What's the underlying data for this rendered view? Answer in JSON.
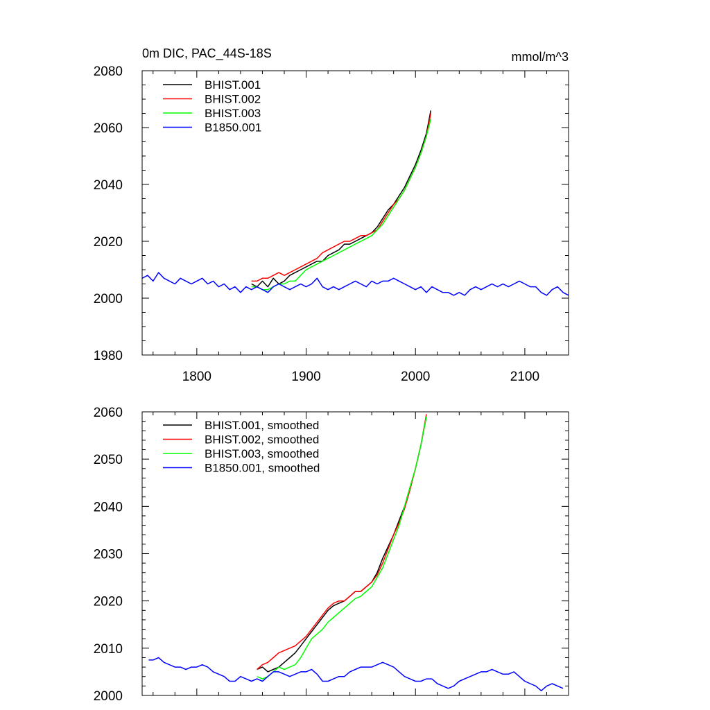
{
  "figure": {
    "title_left": "0m DIC, PAC_44S-18S",
    "title_right": "mmol/m^3"
  },
  "chart_data": [
    {
      "type": "line",
      "title": "0m DIC, PAC_44S-18S",
      "units": "mmol/m^3",
      "xlabel": "",
      "ylabel": "",
      "xlim": [
        1750,
        2140
      ],
      "ylim": [
        1980,
        2080
      ],
      "x_ticks": [
        1800,
        1900,
        2000,
        2100
      ],
      "y_ticks": [
        1980,
        2000,
        2020,
        2040,
        2060,
        2080
      ],
      "legend_position": "top-left",
      "grid": false,
      "series": [
        {
          "name": "BHIST.001",
          "color": "#000000",
          "x": [
            1850,
            1855,
            1860,
            1865,
            1870,
            1875,
            1880,
            1885,
            1890,
            1895,
            1900,
            1905,
            1910,
            1915,
            1920,
            1925,
            1930,
            1935,
            1940,
            1945,
            1950,
            1955,
            1960,
            1965,
            1970,
            1975,
            1980,
            1985,
            1990,
            1995,
            2000,
            2005,
            2010,
            2014
          ],
          "y": [
            2005,
            2004,
            2006,
            2004,
            2007,
            2005,
            2006,
            2008,
            2009,
            2010,
            2011,
            2012,
            2013,
            2013,
            2015,
            2016,
            2017,
            2019,
            2019,
            2020,
            2021,
            2022,
            2023,
            2025,
            2028,
            2031,
            2033,
            2036,
            2039,
            2043,
            2047,
            2052,
            2058,
            2066
          ]
        },
        {
          "name": "BHIST.002",
          "color": "#ff0000",
          "x": [
            1850,
            1855,
            1860,
            1865,
            1870,
            1875,
            1880,
            1885,
            1890,
            1895,
            1900,
            1905,
            1910,
            1915,
            1920,
            1925,
            1930,
            1935,
            1940,
            1945,
            1950,
            1955,
            1960,
            1965,
            1970,
            1975,
            1980,
            1985,
            1990,
            1995,
            2000,
            2005,
            2010,
            2014
          ],
          "y": [
            2006,
            2006,
            2007,
            2007,
            2008,
            2009,
            2008,
            2009,
            2010,
            2011,
            2012,
            2013,
            2014,
            2016,
            2017,
            2018,
            2019,
            2020,
            2020,
            2021,
            2022,
            2022,
            2023,
            2024,
            2027,
            2030,
            2033,
            2035,
            2038,
            2042,
            2046,
            2051,
            2057,
            2065
          ]
        },
        {
          "name": "BHIST.003",
          "color": "#00ff00",
          "x": [
            1850,
            1855,
            1860,
            1865,
            1870,
            1875,
            1880,
            1885,
            1890,
            1895,
            1900,
            1905,
            1910,
            1915,
            1920,
            1925,
            1930,
            1935,
            1940,
            1945,
            1950,
            1955,
            1960,
            1965,
            1970,
            1975,
            1980,
            1985,
            1990,
            1995,
            2000,
            2005,
            2010,
            2014
          ],
          "y": [
            2004,
            2004,
            2003,
            2003,
            2004,
            2005,
            2005,
            2006,
            2006,
            2008,
            2010,
            2011,
            2012,
            2013,
            2014,
            2015,
            2016,
            2017,
            2018,
            2019,
            2020,
            2021,
            2022,
            2024,
            2026,
            2029,
            2032,
            2035,
            2038,
            2042,
            2046,
            2051,
            2057,
            2063
          ]
        },
        {
          "name": "B1850.001",
          "color": "#0000ff",
          "x": [
            1750,
            1755,
            1760,
            1765,
            1770,
            1775,
            1780,
            1785,
            1790,
            1795,
            1800,
            1805,
            1810,
            1815,
            1820,
            1825,
            1830,
            1835,
            1840,
            1845,
            1850,
            1855,
            1860,
            1865,
            1870,
            1875,
            1880,
            1885,
            1890,
            1895,
            1900,
            1905,
            1910,
            1915,
            1920,
            1925,
            1930,
            1935,
            1940,
            1945,
            1950,
            1955,
            1960,
            1965,
            1970,
            1975,
            1980,
            1985,
            1990,
            1995,
            2000,
            2005,
            2010,
            2015,
            2020,
            2025,
            2030,
            2035,
            2040,
            2045,
            2050,
            2055,
            2060,
            2065,
            2070,
            2075,
            2080,
            2085,
            2090,
            2095,
            2100,
            2105,
            2110,
            2115,
            2120,
            2125,
            2130,
            2135,
            2140
          ],
          "y": [
            2007,
            2008,
            2006,
            2009,
            2007,
            2006,
            2005,
            2007,
            2006,
            2005,
            2006,
            2007,
            2005,
            2006,
            2004,
            2005,
            2003,
            2004,
            2002,
            2004,
            2003,
            2004,
            2003,
            2002,
            2004,
            2005,
            2004,
            2003,
            2004,
            2005,
            2004,
            2005,
            2007,
            2004,
            2003,
            2004,
            2003,
            2004,
            2005,
            2006,
            2005,
            2004,
            2006,
            2005,
            2006,
            2006,
            2007,
            2006,
            2005,
            2004,
            2003,
            2004,
            2002,
            2004,
            2003,
            2002,
            2002,
            2001,
            2002,
            2001,
            2003,
            2004,
            2003,
            2004,
            2005,
            2004,
            2005,
            2004,
            2005,
            2006,
            2005,
            2004,
            2004,
            2002,
            2001,
            2003,
            2004,
            2002,
            2001
          ]
        }
      ]
    },
    {
      "type": "line",
      "title": "",
      "xlabel": "",
      "ylabel": "",
      "xlim": [
        1750,
        2140
      ],
      "ylim": [
        2000,
        2060
      ],
      "x_ticks": [
        1800,
        1900,
        2000,
        2100
      ],
      "y_ticks": [
        2000,
        2010,
        2020,
        2030,
        2040,
        2050,
        2060
      ],
      "legend_position": "top-left",
      "grid": false,
      "series": [
        {
          "name": "BHIST.001, smoothed",
          "color": "#000000",
          "x": [
            1855,
            1860,
            1865,
            1870,
            1875,
            1880,
            1885,
            1890,
            1895,
            1900,
            1905,
            1910,
            1915,
            1920,
            1925,
            1930,
            1935,
            1940,
            1945,
            1950,
            1955,
            1960,
            1965,
            1970,
            1975,
            1980,
            1985,
            1990,
            1995,
            2000,
            2005,
            2010
          ],
          "y": [
            2005.5,
            2006,
            2005,
            2005.5,
            2006,
            2007,
            2008,
            2009,
            2010.5,
            2012,
            2013.5,
            2015,
            2016.5,
            2018,
            2019,
            2019.5,
            2020,
            2021,
            2022,
            2022,
            2023,
            2024,
            2026,
            2029,
            2031.5,
            2034,
            2037,
            2040,
            2044,
            2048,
            2053,
            2059
          ]
        },
        {
          "name": "BHIST.002, smoothed",
          "color": "#ff0000",
          "x": [
            1855,
            1860,
            1865,
            1870,
            1875,
            1880,
            1885,
            1890,
            1895,
            1900,
            1905,
            1910,
            1915,
            1920,
            1925,
            1930,
            1935,
            1940,
            1945,
            1950,
            1955,
            1960,
            1965,
            1970,
            1975,
            1980,
            1985,
            1990,
            1995,
            2000,
            2005,
            2010
          ],
          "y": [
            2005.5,
            2006.5,
            2007,
            2008,
            2009,
            2009.5,
            2010,
            2010.5,
            2011.5,
            2012.5,
            2014,
            2015.5,
            2017,
            2018.5,
            2019.5,
            2020,
            2020,
            2021,
            2022,
            2022,
            2023,
            2024,
            2025.5,
            2028,
            2031,
            2034,
            2036.5,
            2039.5,
            2043.5,
            2048,
            2053,
            2059.5
          ]
        },
        {
          "name": "BHIST.003, smoothed",
          "color": "#00ff00",
          "x": [
            1855,
            1860,
            1865,
            1870,
            1875,
            1880,
            1885,
            1890,
            1895,
            1900,
            1905,
            1910,
            1915,
            1920,
            1925,
            1930,
            1935,
            1940,
            1945,
            1950,
            1955,
            1960,
            1965,
            1970,
            1975,
            1980,
            1985,
            1990,
            1995,
            2000,
            2005,
            2010
          ],
          "y": [
            2004,
            2003.5,
            2004,
            2005,
            2006,
            2005.5,
            2006,
            2006.5,
            2008,
            2010,
            2012,
            2013,
            2014,
            2015.5,
            2016.5,
            2017.5,
            2018.5,
            2019.5,
            2020.5,
            2021,
            2022,
            2023,
            2025,
            2027,
            2030,
            2033,
            2036,
            2040,
            2044,
            2048,
            2053,
            2059
          ]
        },
        {
          "name": "B1850.001, smoothed",
          "color": "#0000ff",
          "x": [
            1756,
            1760,
            1765,
            1770,
            1775,
            1780,
            1785,
            1790,
            1795,
            1800,
            1805,
            1810,
            1815,
            1820,
            1825,
            1830,
            1835,
            1840,
            1845,
            1850,
            1855,
            1860,
            1865,
            1870,
            1875,
            1880,
            1885,
            1890,
            1895,
            1900,
            1905,
            1910,
            1915,
            1920,
            1925,
            1930,
            1935,
            1940,
            1945,
            1950,
            1955,
            1960,
            1965,
            1970,
            1975,
            1980,
            1985,
            1990,
            1995,
            2000,
            2005,
            2010,
            2015,
            2020,
            2025,
            2030,
            2035,
            2040,
            2045,
            2050,
            2055,
            2060,
            2065,
            2070,
            2075,
            2080,
            2085,
            2090,
            2095,
            2100,
            2105,
            2110,
            2115,
            2120,
            2125,
            2130,
            2135
          ],
          "y": [
            2007.5,
            2007.5,
            2008,
            2007,
            2006.5,
            2006,
            2006,
            2005.5,
            2006,
            2006,
            2006.5,
            2006,
            2005,
            2004.5,
            2004,
            2003,
            2003,
            2004,
            2003.5,
            2003,
            2003.5,
            2003,
            2004,
            2005,
            2005,
            2004.5,
            2004,
            2004.5,
            2005,
            2005,
            2005.5,
            2004.5,
            2003,
            2003,
            2003.5,
            2004,
            2004,
            2005,
            2005.5,
            2006,
            2006,
            2006,
            2006.5,
            2007,
            2006.5,
            2006,
            2005,
            2004,
            2003.5,
            2003,
            2003,
            2003.5,
            2003.5,
            2002.5,
            2002,
            2001.5,
            2002,
            2003,
            2003.5,
            2004,
            2004.5,
            2005,
            2005,
            2005.5,
            2005,
            2004.5,
            2004.5,
            2005,
            2004,
            2003,
            2002.5,
            2002,
            2001,
            2002,
            2002.5,
            2002,
            2001.5
          ]
        }
      ]
    }
  ]
}
